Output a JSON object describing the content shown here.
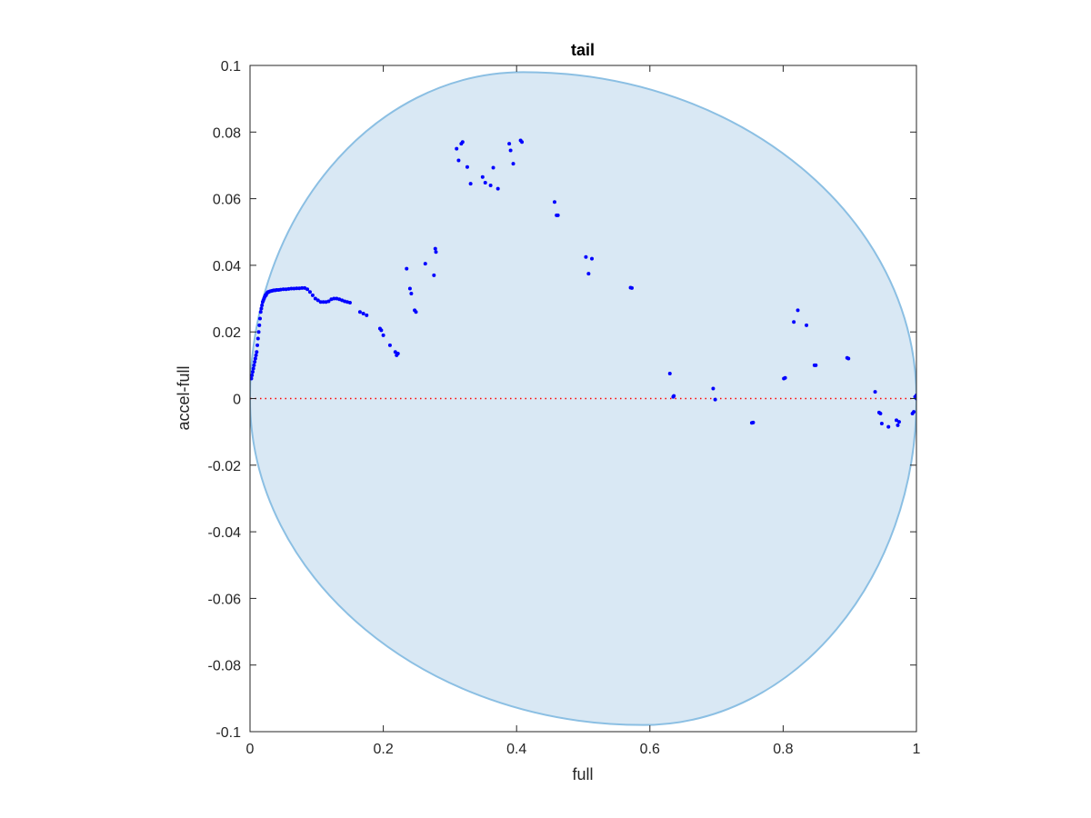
{
  "chart_data": {
    "type": "scatter",
    "title": "tail",
    "xlabel": "full",
    "ylabel": "accel-full",
    "xlim": [
      0,
      1
    ],
    "ylim": [
      -0.1,
      0.1
    ],
    "xticks": [
      "0",
      "0.2",
      "0.4",
      "0.6",
      "0.8",
      "1"
    ],
    "xtick_values": [
      0,
      0.2,
      0.4,
      0.6,
      0.8,
      1
    ],
    "yticks": [
      "-0.1",
      "-0.08",
      "-0.06",
      "-0.04",
      "-0.02",
      "0",
      "0.02",
      "0.04",
      "0.06",
      "0.08",
      "0.1"
    ],
    "ytick_values": [
      -0.1,
      -0.08,
      -0.06,
      -0.04,
      -0.02,
      0,
      0.02,
      0.04,
      0.06,
      0.08,
      0.1
    ],
    "reference_line": {
      "y": 0,
      "style": "dotted",
      "color": "#ff0000"
    },
    "region": {
      "shape": "ellipse",
      "fill": "#d9e8f4",
      "stroke": "#8bbfe3",
      "x_extent": [
        0,
        1
      ],
      "y_extent": [
        -0.098,
        0.098
      ],
      "top_x": 0.41,
      "bottom_x": 0.59
    },
    "series": [
      {
        "color": "#0000ff",
        "x": [
          0.002,
          0.003,
          0.004,
          0.005,
          0.006,
          0.007,
          0.008,
          0.009,
          0.01,
          0.011,
          0.012,
          0.013,
          0.014,
          0.015,
          0.016,
          0.017,
          0.018,
          0.019,
          0.02,
          0.021,
          0.022,
          0.023,
          0.024,
          0.025,
          0.026,
          0.027,
          0.028,
          0.03,
          0.032,
          0.034,
          0.036,
          0.038,
          0.04,
          0.043,
          0.046,
          0.05,
          0.054,
          0.058,
          0.062,
          0.066,
          0.07,
          0.074,
          0.078,
          0.082,
          0.086,
          0.09,
          0.094,
          0.098,
          0.102,
          0.106,
          0.11,
          0.114,
          0.118,
          0.122,
          0.126,
          0.13,
          0.134,
          0.138,
          0.142,
          0.146,
          0.15,
          0.165,
          0.17,
          0.175,
          0.195,
          0.197,
          0.2,
          0.21,
          0.218,
          0.22,
          0.222,
          0.235,
          0.24,
          0.242,
          0.247,
          0.249,
          0.263,
          0.276,
          0.278,
          0.279,
          0.31,
          0.313,
          0.317,
          0.319,
          0.326,
          0.331,
          0.349,
          0.353,
          0.361,
          0.365,
          0.372,
          0.389,
          0.391,
          0.395,
          0.406,
          0.408,
          0.457,
          0.46,
          0.462,
          0.504,
          0.508,
          0.513,
          0.571,
          0.573,
          0.63,
          0.635,
          0.636,
          0.695,
          0.698,
          0.753,
          0.755,
          0.801,
          0.803,
          0.816,
          0.822,
          0.835,
          0.847,
          0.849,
          0.896,
          0.898,
          0.938,
          0.944,
          0.946,
          0.948,
          0.958,
          0.97,
          0.972,
          0.974,
          0.994,
          0.996,
          0.998,
          1.0,
          1.0,
          1.0
        ],
        "y": [
          0.006,
          0.007,
          0.008,
          0.009,
          0.01,
          0.011,
          0.012,
          0.013,
          0.014,
          0.016,
          0.018,
          0.02,
          0.022,
          0.024,
          0.026,
          0.027,
          0.028,
          0.029,
          0.0295,
          0.03,
          0.0305,
          0.031,
          0.031,
          0.0315,
          0.0318,
          0.032,
          0.032,
          0.0322,
          0.0323,
          0.0324,
          0.0325,
          0.0325,
          0.0326,
          0.0326,
          0.0327,
          0.0328,
          0.0328,
          0.0329,
          0.033,
          0.033,
          0.0331,
          0.0331,
          0.0332,
          0.0332,
          0.0328,
          0.032,
          0.031,
          0.03,
          0.0295,
          0.029,
          0.029,
          0.029,
          0.0292,
          0.0298,
          0.03,
          0.03,
          0.0298,
          0.0295,
          0.0292,
          0.029,
          0.0288,
          0.026,
          0.0255,
          0.025,
          0.021,
          0.0205,
          0.019,
          0.016,
          0.014,
          0.013,
          0.0135,
          0.039,
          0.033,
          0.0315,
          0.0265,
          0.026,
          0.0405,
          0.037,
          0.045,
          0.044,
          0.075,
          0.0715,
          0.0765,
          0.077,
          0.0695,
          0.0645,
          0.0665,
          0.0648,
          0.064,
          0.0693,
          0.063,
          0.0765,
          0.0745,
          0.0705,
          0.0775,
          0.077,
          0.059,
          0.055,
          0.055,
          0.0425,
          0.0375,
          0.042,
          0.0333,
          0.0332,
          0.0075,
          0.0005,
          0.0008,
          0.003,
          -0.0003,
          -0.0073,
          -0.0072,
          0.006,
          0.0062,
          0.023,
          0.0265,
          0.022,
          0.01,
          0.01,
          0.0122,
          0.012,
          0.002,
          -0.0042,
          -0.0045,
          -0.0075,
          -0.0085,
          -0.0065,
          -0.008,
          -0.007,
          -0.0045,
          -0.004,
          0.0005,
          0.001,
          0.0003,
          0.0
        ]
      }
    ]
  }
}
